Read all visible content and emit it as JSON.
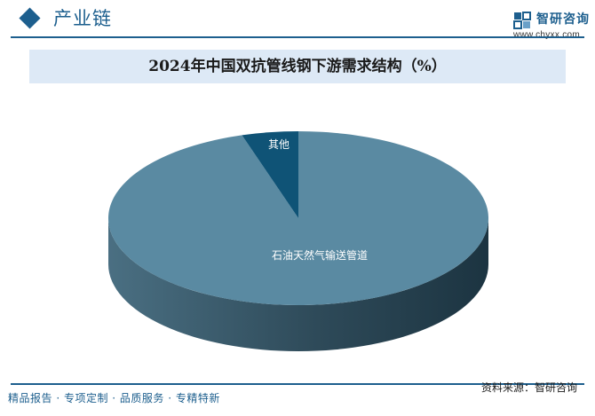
{
  "header": {
    "section_title": "产业链",
    "brand_name": "智研咨询",
    "brand_url": "www.chyxx.com"
  },
  "chart_data": {
    "type": "pie",
    "title": "2024年中国双抗管线钢下游需求结构（%）",
    "slices": [
      {
        "label": "石油天然气输送管道",
        "value": 95.2,
        "color": "#5a8aa2",
        "side_color": "#3d6477"
      },
      {
        "label": "其他",
        "value": 4.8,
        "color": "#0f5376",
        "side_color": "#0a3a53"
      }
    ],
    "legend": "none",
    "labels": "on-slice"
  },
  "footer": {
    "tagline": "精品报告 · 专项定制 · 品质服务 · 专精特新",
    "source": "资料来源：智研咨询"
  }
}
